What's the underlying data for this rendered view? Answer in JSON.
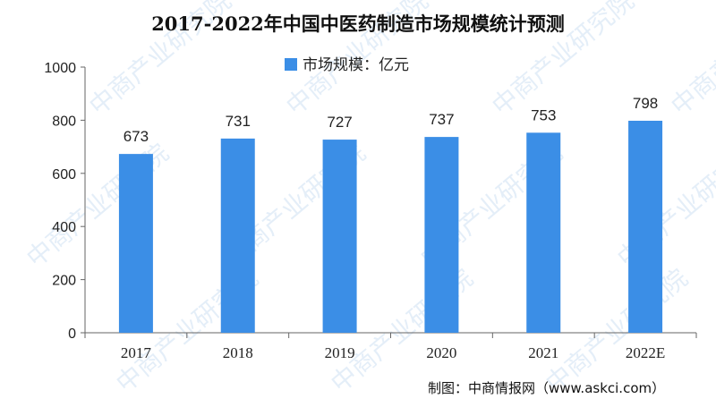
{
  "chart_data": {
    "type": "bar",
    "title": "2017-2022年中国中医药制造市场规模统计预测",
    "categories": [
      "2017",
      "2018",
      "2019",
      "2020",
      "2021",
      "2022E"
    ],
    "series": [
      {
        "name": "市场规模：亿元",
        "values": [
          673,
          731,
          727,
          737,
          753,
          798
        ]
      }
    ],
    "data_labels": [
      "673",
      "731",
      "727",
      "737",
      "753",
      "798"
    ],
    "yticks": [
      "0",
      "200",
      "400",
      "600",
      "800",
      "1000"
    ],
    "ylim": [
      0,
      1000
    ],
    "grid": false,
    "legend": "top-center",
    "bar_color": "#3b8ee6"
  },
  "source": "制图：中商情报网（www.askci.com）",
  "watermark": "中商产业研究院"
}
